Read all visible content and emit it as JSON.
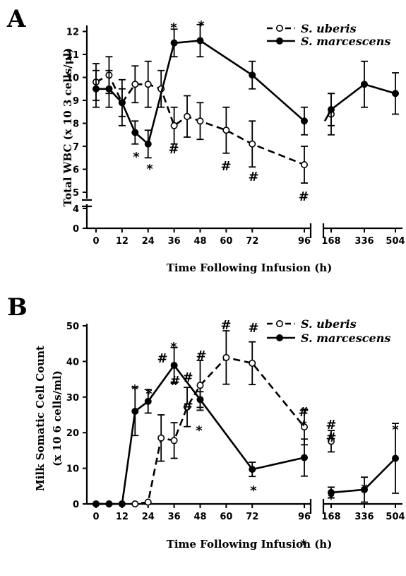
{
  "colors": {
    "ink": "#000000",
    "background": "#ffffff",
    "open_fill": "#ffffff"
  },
  "chart_data": [
    {
      "panel": "A",
      "type": "line",
      "xlabel": "Time Following Infusion (h)",
      "ylabel": "Total WBC (x 10 3 cells/μl)",
      "x_tick_labels": [
        "0",
        "12",
        "24",
        "36",
        "48",
        "60",
        "72",
        "96",
        "168",
        "336",
        "504"
      ],
      "y_tick_labels": [
        "0",
        "4",
        "5",
        "6",
        "7",
        "8",
        "9",
        "10",
        "11",
        "12"
      ],
      "y_axis_break": "between 4 and 5",
      "x_axis_break": "between 96 and 168",
      "legend": [
        "S. uberis",
        "S. marcescens"
      ],
      "legend_placement": "top-right",
      "series": [
        {
          "name": "S. uberis",
          "marker": "open-circle",
          "line": "dashed",
          "x": [
            0,
            6,
            12,
            18,
            24,
            30,
            36,
            42,
            48,
            60,
            72,
            96,
            168,
            336,
            504
          ],
          "y": [
            9.8,
            10.1,
            8.9,
            9.7,
            9.7,
            9.5,
            7.9,
            8.3,
            8.1,
            7.7,
            7.1,
            6.2,
            8.4,
            null,
            null
          ],
          "err": [
            0.8,
            0.8,
            0.6,
            0.8,
            1.0,
            0.8,
            0.8,
            0.9,
            0.8,
            1.0,
            1.0,
            0.8,
            0.9,
            null,
            null
          ],
          "markers": [
            "",
            "",
            "",
            "",
            "",
            "",
            "#",
            "",
            "",
            "#",
            "#",
            "#",
            "",
            "",
            ""
          ]
        },
        {
          "name": "S. marcescens",
          "marker": "filled-circle",
          "line": "solid",
          "x": [
            0,
            6,
            12,
            18,
            24,
            30,
            36,
            42,
            48,
            60,
            72,
            96,
            168,
            336,
            504
          ],
          "y": [
            9.5,
            9.5,
            8.9,
            7.6,
            7.1,
            null,
            11.5,
            null,
            11.6,
            null,
            10.1,
            8.1,
            8.6,
            9.7,
            9.3
          ],
          "err": [
            0.8,
            0.8,
            1.0,
            0.5,
            0.6,
            null,
            0.6,
            null,
            0.7,
            null,
            0.6,
            0.6,
            0.7,
            1.0,
            0.9
          ],
          "markers": [
            "",
            "",
            "",
            "*",
            "*",
            "",
            "*",
            "",
            "*",
            "",
            "",
            "",
            "",
            "",
            ""
          ]
        }
      ]
    },
    {
      "panel": "B",
      "type": "line",
      "xlabel": "Time Following Infusion (h)",
      "ylabel": "Milk Somatic Cell Count",
      "ylabel2": "(x 10 6 cells/ml)",
      "x_tick_labels": [
        "0",
        "12",
        "24",
        "36",
        "48",
        "60",
        "72",
        "96",
        "168",
        "336",
        "504"
      ],
      "y_tick_labels": [
        "0",
        "10",
        "20",
        "30",
        "40",
        "50"
      ],
      "ylim": [
        0,
        50
      ],
      "x_axis_break": "between 96 and 168",
      "legend": [
        "S. uberis",
        "S. marcescens"
      ],
      "legend_placement": "top-right",
      "series": [
        {
          "name": "S. uberis",
          "marker": "open-circle",
          "line": "dashed",
          "x": [
            0,
            6,
            12,
            18,
            24,
            30,
            36,
            42,
            48,
            60,
            72,
            96,
            168
          ],
          "y": [
            0,
            0,
            0,
            0,
            0.5,
            18.5,
            17.8,
            27.2,
            33.3,
            41.1,
            39.5,
            21.6,
            17.6
          ],
          "err": [
            0,
            0,
            0,
            0,
            0,
            6.5,
            5.0,
            5.5,
            7.0,
            7.5,
            6.0,
            5.0,
            3.0
          ],
          "markers": [
            "",
            "",
            "",
            "",
            "",
            "#",
            "#",
            "#",
            "#",
            "#",
            "#",
            "#",
            "#"
          ]
        },
        {
          "name": "S. marcescens",
          "marker": "filled-circle",
          "line": "solid",
          "x": [
            0,
            6,
            12,
            18,
            24,
            36,
            48,
            72,
            96,
            168,
            336,
            504
          ],
          "y": [
            0,
            0,
            0,
            26.0,
            28.8,
            38.9,
            29.3,
            9.7,
            13.0,
            3.2,
            4.0,
            12.8
          ],
          "err": [
            0,
            0,
            0,
            6.8,
            3.3,
            5.0,
            2.2,
            2.0,
            5.2,
            1.5,
            3.5,
            9.8
          ],
          "markers": [
            "",
            "",
            "",
            "*",
            "*",
            "*",
            "*",
            "*",
            "*",
            "*",
            "*",
            "*"
          ]
        }
      ]
    }
  ]
}
